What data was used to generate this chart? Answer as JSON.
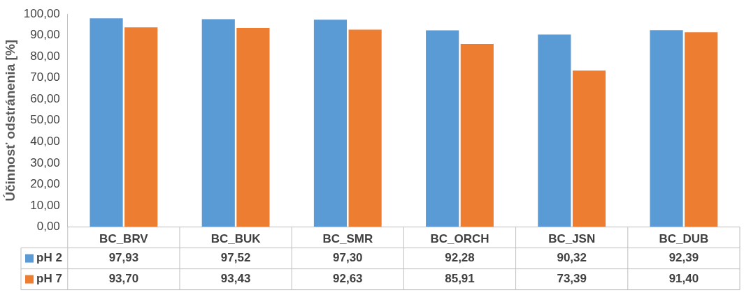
{
  "chart_data": {
    "type": "bar",
    "ylabel": "Účinnosť odstránenia [%]",
    "categories": [
      "BC_BRV",
      "BC_BUK",
      "BC_SMR",
      "BC_ORCH",
      "BC_JSN",
      "BC_DUB"
    ],
    "series": [
      {
        "name": "pH 2",
        "color": "#5b9bd5",
        "values": [
          97.93,
          97.52,
          97.3,
          92.28,
          90.32,
          92.39
        ],
        "value_labels": [
          "97,93",
          "97,52",
          "97,30",
          "92,28",
          "90,32",
          "92,39"
        ]
      },
      {
        "name": "pH 7",
        "color": "#ed7d31",
        "values": [
          93.7,
          93.43,
          92.63,
          85.91,
          73.39,
          91.4
        ],
        "value_labels": [
          "93,70",
          "93,43",
          "92,63",
          "85,91",
          "73,39",
          "91,40"
        ]
      }
    ],
    "ylim": [
      0,
      100
    ],
    "yticks": [
      {
        "value": 0,
        "label": "0,00"
      },
      {
        "value": 10,
        "label": "10,00"
      },
      {
        "value": 20,
        "label": "20,00"
      },
      {
        "value": 30,
        "label": "30,00"
      },
      {
        "value": 40,
        "label": "40,00"
      },
      {
        "value": 50,
        "label": "50,00"
      },
      {
        "value": 60,
        "label": "60,00"
      },
      {
        "value": 70,
        "label": "70,00"
      },
      {
        "value": 80,
        "label": "80,00"
      },
      {
        "value": 90,
        "label": "90,00"
      },
      {
        "value": 100,
        "label": "100,00"
      }
    ],
    "grid": false,
    "legend": "bottom left"
  }
}
